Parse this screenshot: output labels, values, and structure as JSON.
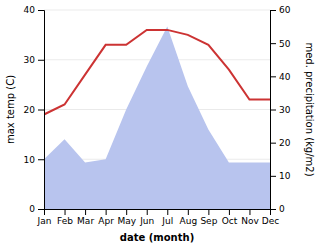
{
  "chart_data": {
    "type": "line",
    "x_label": "date (month)",
    "y_label": "max temp (C)",
    "y2_label": "med. precipitation (kg/m2)",
    "categories": [
      "Jan",
      "Feb",
      "Mar",
      "Apr",
      "May",
      "Jun",
      "Jul",
      "Aug",
      "Sep",
      "Oct",
      "Nov",
      "Dec"
    ],
    "series": [
      {
        "type": "area",
        "axis": "y2",
        "color": "#b8c4ee",
        "values": [
          15,
          21,
          14,
          15,
          30,
          43,
          55,
          37,
          24,
          14,
          14,
          14
        ]
      },
      {
        "type": "line",
        "color": "#cc3333",
        "values": [
          19,
          21,
          27,
          33,
          33,
          36,
          36,
          35,
          33,
          28,
          22,
          22
        ]
      }
    ],
    "ylim": [
      0,
      40
    ],
    "yticks": [
      0,
      10,
      20,
      30,
      40
    ],
    "y2lim": [
      0,
      60
    ],
    "y2ticks": [
      0,
      10,
      20,
      30,
      40,
      50,
      60
    ],
    "grid": true
  }
}
